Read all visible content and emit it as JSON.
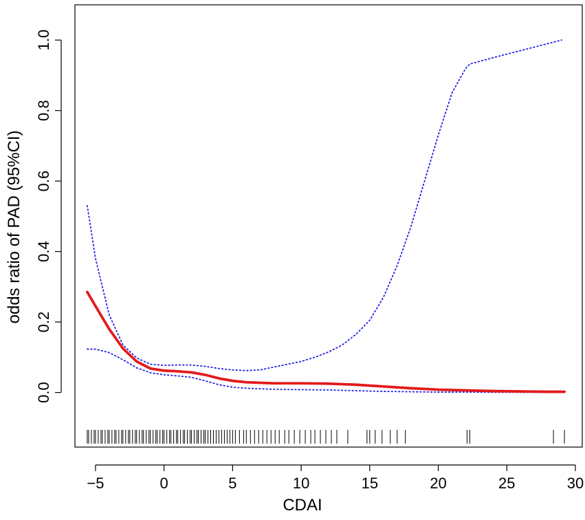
{
  "chart_data": {
    "type": "line",
    "title": "",
    "xlabel": "CDAI",
    "ylabel": "odds ratio of PAD (95%CI)",
    "xlim": [
      -6.5,
      30.5
    ],
    "ylim": [
      -0.155,
      1.1
    ],
    "x_ticks": [
      -5,
      0,
      5,
      10,
      15,
      20,
      25,
      30
    ],
    "x_tick_labels": [
      "−5",
      "0",
      "5",
      "10",
      "15",
      "20",
      "25",
      "30"
    ],
    "y_ticks": [
      0.0,
      0.2,
      0.4,
      0.6,
      0.8,
      1.0
    ],
    "y_tick_labels": [
      "0.0",
      "0.2",
      "0.4",
      "0.6",
      "0.8",
      "1.0"
    ],
    "grid": false,
    "legend": "none",
    "colors": {
      "estimate": "#e31a1c",
      "ci": "#1f1fe6",
      "rug": "#000000",
      "axis": "#000000"
    },
    "series": [
      {
        "role": "estimate",
        "style": "solid",
        "x": [
          -5.6,
          -5,
          -4,
          -3,
          -2,
          -1,
          0,
          1,
          2,
          3,
          4,
          5,
          6,
          8,
          10,
          12,
          14,
          16,
          18,
          20,
          22,
          24,
          26,
          28,
          29.2
        ],
        "y": [
          0.285,
          0.245,
          0.18,
          0.125,
          0.088,
          0.068,
          0.062,
          0.06,
          0.057,
          0.05,
          0.04,
          0.033,
          0.029,
          0.026,
          0.026,
          0.025,
          0.022,
          0.017,
          0.012,
          0.008,
          0.006,
          0.004,
          0.003,
          0.002,
          0.002
        ]
      },
      {
        "role": "ci-upper",
        "style": "dotted",
        "x": [
          -5.6,
          -5,
          -4,
          -3,
          -2,
          -1,
          0,
          1,
          2,
          3,
          4,
          5,
          6,
          7,
          8,
          9,
          10,
          11,
          12,
          13,
          14,
          15,
          16,
          17,
          18,
          19,
          20,
          21,
          22,
          22.3,
          24,
          26,
          28,
          29
        ],
        "y": [
          0.53,
          0.38,
          0.22,
          0.135,
          0.098,
          0.08,
          0.077,
          0.078,
          0.078,
          0.074,
          0.068,
          0.064,
          0.062,
          0.064,
          0.072,
          0.08,
          0.088,
          0.1,
          0.115,
          0.135,
          0.165,
          0.205,
          0.27,
          0.36,
          0.47,
          0.6,
          0.73,
          0.85,
          0.92,
          0.932,
          0.95,
          0.97,
          0.99,
          1.0
        ]
      },
      {
        "role": "ci-lower",
        "style": "dotted",
        "x": [
          -5.6,
          -5,
          -4,
          -3,
          -2,
          -1,
          0,
          1,
          2,
          3,
          4,
          5,
          6,
          8,
          10,
          12,
          14,
          16,
          18,
          20,
          22,
          24,
          26,
          28,
          29
        ],
        "y": [
          0.123,
          0.123,
          0.113,
          0.093,
          0.07,
          0.056,
          0.05,
          0.047,
          0.043,
          0.033,
          0.022,
          0.015,
          0.012,
          0.009,
          0.008,
          0.007,
          0.005,
          0.003,
          0.002,
          0.001,
          0.001,
          0.0005,
          0.0003,
          0.0002,
          0.0001
        ]
      }
    ],
    "rug": {
      "x": [
        -5.6,
        -5.5,
        -5.3,
        -5.1,
        -5.0,
        -4.8,
        -4.6,
        -4.5,
        -4.3,
        -4.1,
        -4.0,
        -3.8,
        -3.6,
        -3.5,
        -3.3,
        -3.1,
        -3.0,
        -2.8,
        -2.6,
        -2.5,
        -2.3,
        -2.1,
        -2.0,
        -1.8,
        -1.6,
        -1.5,
        -1.3,
        -1.1,
        -1.0,
        -0.8,
        -0.6,
        -0.5,
        -0.3,
        -0.1,
        0.0,
        0.2,
        0.4,
        0.5,
        0.7,
        0.9,
        1.0,
        1.2,
        1.4,
        1.5,
        1.7,
        1.9,
        2.0,
        2.2,
        2.4,
        2.5,
        2.7,
        2.9,
        3.0,
        3.2,
        3.4,
        3.6,
        3.8,
        4.0,
        4.2,
        4.4,
        4.6,
        4.8,
        5.0,
        5.2,
        5.5,
        5.8,
        6.0,
        6.3,
        6.6,
        6.9,
        7.2,
        7.5,
        7.8,
        8.1,
        8.4,
        8.8,
        9.1,
        9.5,
        9.9,
        10.3,
        10.7,
        11.0,
        11.4,
        11.8,
        12.2,
        12.6,
        13.4,
        14.8,
        15.0,
        15.4,
        15.9,
        16.5,
        17.0,
        17.6,
        22.1,
        22.3,
        28.4,
        29.2
      ]
    }
  }
}
